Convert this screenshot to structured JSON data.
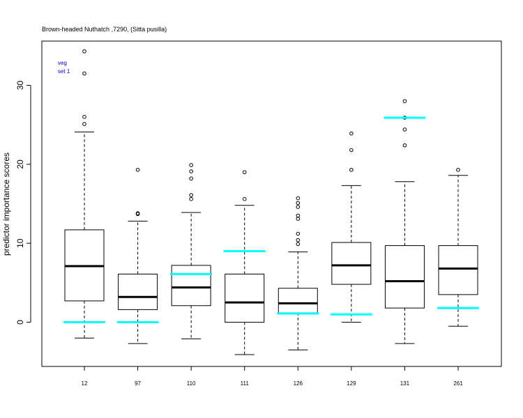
{
  "chart_data": {
    "type": "box",
    "title": "Brown-headed Nuthatch ,7290, (Sitta pusilla)",
    "ylabel": "predictor importance scores",
    "xlabel": "",
    "annotation": [
      "veg",
      "set 1"
    ],
    "annotation_color": "#0000cc",
    "marker_color": "#00ffff",
    "ylim": [
      -5.6,
      35.6
    ],
    "y_ticks": [
      0,
      10,
      20,
      30
    ],
    "categories": [
      "12",
      "97",
      "110",
      "111",
      "126",
      "129",
      "131",
      "261"
    ],
    "boxes": [
      {
        "label": "12",
        "whisker_low": -2.0,
        "q1": 2.7,
        "median": 7.1,
        "q3": 11.7,
        "whisker_high": 24.1,
        "outliers": [
          25.1,
          26.0,
          31.5,
          34.3
        ],
        "marker": 0.0
      },
      {
        "label": "97",
        "whisker_low": -2.7,
        "q1": 1.6,
        "median": 3.2,
        "q3": 6.1,
        "whisker_high": 12.8,
        "outliers": [
          13.8,
          13.7,
          19.3
        ],
        "marker": 0.0
      },
      {
        "label": "110",
        "whisker_low": -2.1,
        "q1": 2.1,
        "median": 4.4,
        "q3": 7.2,
        "whisker_high": 13.9,
        "outliers": [
          15.6,
          16.1,
          18.2,
          19.1,
          19.9
        ],
        "marker": 6.1
      },
      {
        "label": "111",
        "whisker_low": -4.1,
        "q1": 0.0,
        "median": 2.5,
        "q3": 6.1,
        "whisker_high": 14.8,
        "outliers": [
          15.6,
          19.0
        ],
        "marker": 9.0
      },
      {
        "label": "126",
        "whisker_low": -3.5,
        "q1": 1.2,
        "median": 2.4,
        "q3": 4.3,
        "whisker_high": 8.9,
        "outliers": [
          9.9,
          10.4,
          11.2,
          13.1,
          13.5,
          14.6,
          15.1,
          15.7
        ],
        "marker": 1.1
      },
      {
        "label": "129",
        "whisker_low": 0.0,
        "q1": 4.8,
        "median": 7.2,
        "q3": 10.1,
        "whisker_high": 17.3,
        "outliers": [
          19.3,
          21.8,
          23.9
        ],
        "marker": 1.0
      },
      {
        "label": "131",
        "whisker_low": -2.7,
        "q1": 1.8,
        "median": 5.2,
        "q3": 9.7,
        "whisker_high": 17.8,
        "outliers": [
          22.4,
          24.4,
          25.9,
          28.0
        ],
        "marker": 25.9
      },
      {
        "label": "261",
        "whisker_low": -0.5,
        "q1": 3.5,
        "median": 6.8,
        "q3": 9.7,
        "whisker_high": 18.6,
        "outliers": [
          19.3
        ],
        "marker": 1.8
      }
    ]
  }
}
